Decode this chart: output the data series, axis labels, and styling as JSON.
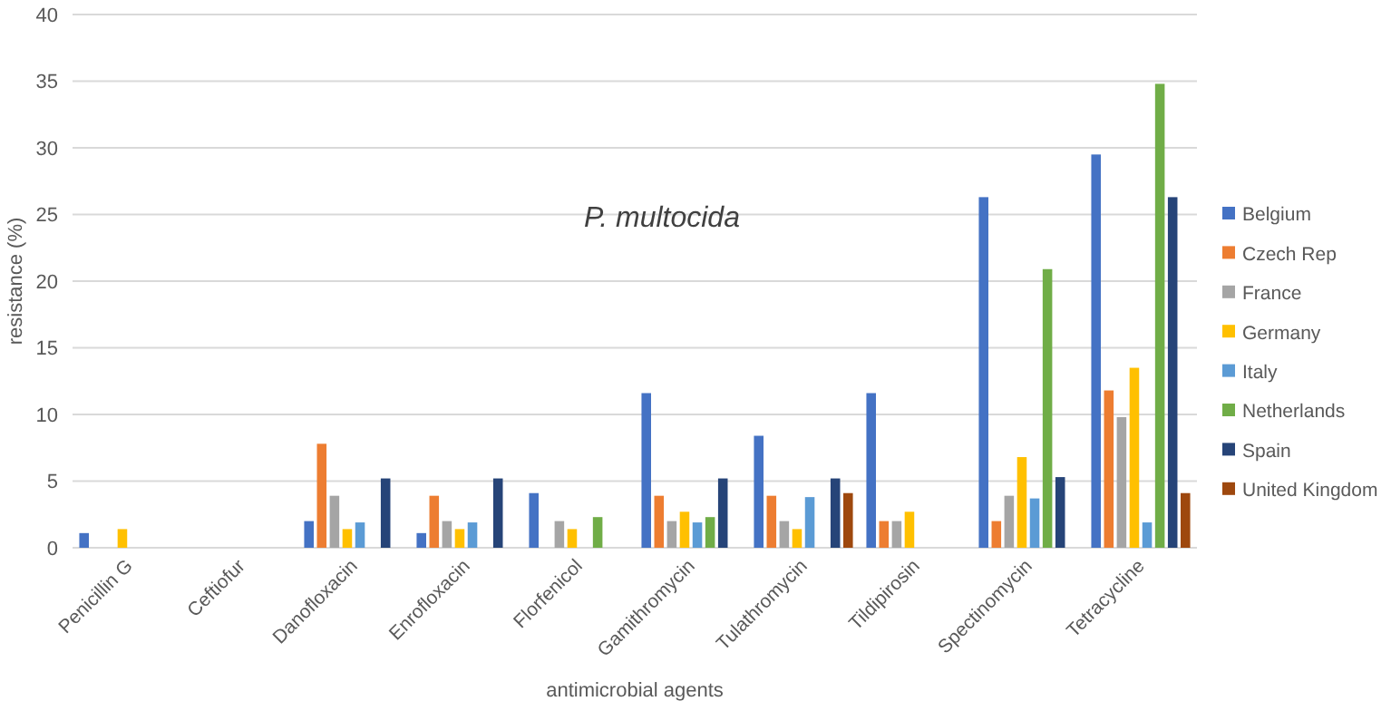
{
  "chart_data": {
    "type": "bar",
    "title": "P. multocida",
    "xlabel": "antimicrobial agents",
    "ylabel": "resistance (%)",
    "categories": [
      "Penicillin G",
      "Ceftiofur",
      "Danofloxacin",
      "Enrofloxacin",
      "Florfenicol",
      "Gamithromycin",
      "Tulathromycin",
      "Tildipirosin",
      "Spectinomycin",
      "Tetracycline"
    ],
    "series": [
      {
        "name": "Belgium",
        "color": "#4472c4",
        "values": [
          1.1,
          null,
          2.0,
          1.1,
          4.1,
          11.6,
          8.4,
          11.6,
          26.3,
          29.5
        ]
      },
      {
        "name": "Czech Rep",
        "color": "#ed7d31",
        "values": [
          null,
          null,
          7.8,
          3.9,
          null,
          3.9,
          3.9,
          2.0,
          2.0,
          11.8
        ]
      },
      {
        "name": "France",
        "color": "#a5a5a5",
        "values": [
          null,
          null,
          3.9,
          2.0,
          2.0,
          2.0,
          2.0,
          2.0,
          3.9,
          9.8
        ]
      },
      {
        "name": "Germany",
        "color": "#ffc000",
        "values": [
          1.4,
          null,
          1.4,
          1.4,
          1.4,
          2.7,
          1.4,
          2.7,
          6.8,
          13.5
        ]
      },
      {
        "name": "Italy",
        "color": "#5b9bd5",
        "values": [
          null,
          null,
          1.9,
          1.9,
          null,
          1.9,
          3.8,
          null,
          3.7,
          1.9
        ]
      },
      {
        "name": "Netherlands",
        "color": "#70ad47",
        "values": [
          null,
          null,
          null,
          null,
          2.3,
          2.3,
          null,
          null,
          20.9,
          34.8
        ]
      },
      {
        "name": "Spain",
        "color": "#264478",
        "values": [
          null,
          null,
          5.2,
          5.2,
          null,
          5.2,
          5.2,
          null,
          5.3,
          26.3
        ]
      },
      {
        "name": "United Kingdom",
        "color": "#9e480e",
        "values": [
          null,
          null,
          null,
          null,
          null,
          null,
          4.1,
          null,
          null,
          4.1
        ]
      }
    ],
    "ylim": [
      0,
      40
    ],
    "yticks": [
      0,
      5,
      10,
      15,
      20,
      25,
      30,
      35,
      40
    ],
    "grid": "y",
    "legend": "right"
  }
}
